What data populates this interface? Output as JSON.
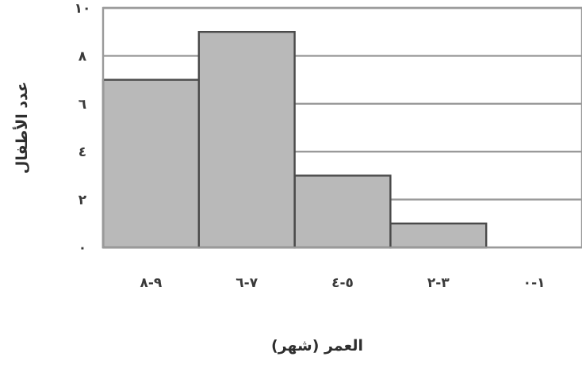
{
  "chart_data": {
    "type": "bar",
    "categories": [
      "١-٠",
      "٣-٢",
      "٥-٤",
      "٧-٦",
      "٩-٨"
    ],
    "values": [
      0,
      1,
      3,
      9,
      7
    ],
    "xlabel": "العمر (شهر)",
    "ylabel": "عدد الأطفال",
    "ylim": [
      0,
      10
    ],
    "yticks": [
      0,
      2,
      4,
      6,
      8,
      10
    ],
    "ytick_labels": [
      "٠",
      "٢",
      "٤",
      "٦",
      "٨",
      "١٠"
    ],
    "direction": "rtl",
    "grid": true,
    "legend": "none",
    "colors": {
      "bar_fill": "#b9b9b9",
      "bar_stroke": "#4a4a4a",
      "grid": "#9a9a9a"
    }
  }
}
